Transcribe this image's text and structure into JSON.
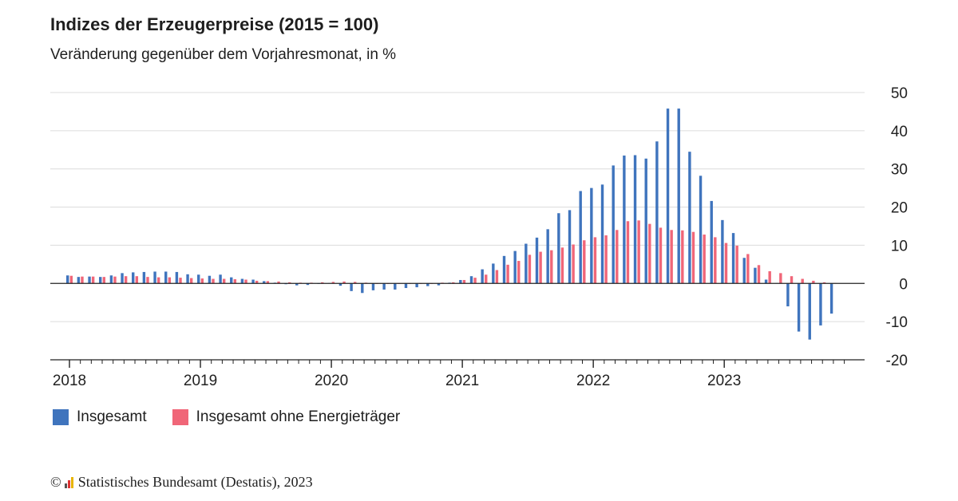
{
  "chart_data": {
    "type": "bar",
    "title": "Indizes der Erzeugerpreise (2015 = 100)",
    "subtitle": "Veränderung gegenüber dem Vorjahresmonat, in %",
    "ylim": [
      -20,
      50
    ],
    "y_ticks": [
      "50",
      "40",
      "30",
      "20",
      "10",
      "0",
      "-10",
      "-20"
    ],
    "y_tick_values": [
      50,
      40,
      30,
      20,
      10,
      0,
      -10,
      -20
    ],
    "x_year_labels": [
      "2018",
      "2019",
      "2020",
      "2021",
      "2022",
      "2023"
    ],
    "grid": true,
    "legend_position": "bottom-left",
    "series": [
      {
        "name": "Insgesamt",
        "color": "#3f74bd",
        "values": [
          2.1,
          1.7,
          1.8,
          1.7,
          2.1,
          2.7,
          2.9,
          3.0,
          3.1,
          3.1,
          3.0,
          2.4,
          2.3,
          2.0,
          2.3,
          1.6,
          1.2,
          1.0,
          0.6,
          0.2,
          -0.2,
          -0.5,
          -0.4,
          0.0,
          0.1,
          -0.6,
          -2.0,
          -2.5,
          -1.8,
          -1.6,
          -1.6,
          -1.2,
          -1.0,
          -0.7,
          -0.5,
          0.2,
          0.9,
          1.9,
          3.7,
          5.2,
          7.2,
          8.5,
          10.4,
          12.0,
          14.2,
          18.4,
          19.2,
          24.2,
          25.0,
          25.9,
          30.9,
          33.5,
          33.6,
          32.7,
          37.2,
          45.8,
          45.8,
          34.5,
          28.2,
          21.6,
          16.6,
          13.2,
          6.7,
          4.1,
          1.0,
          0.1,
          -6.0,
          -12.6,
          -14.7,
          -11.0,
          -7.9
        ]
      },
      {
        "name": "Insgesamt ohne Energieträger",
        "color": "#f06678",
        "values": [
          2.0,
          1.8,
          1.8,
          1.7,
          1.8,
          1.9,
          1.9,
          1.7,
          1.6,
          1.6,
          1.5,
          1.4,
          1.3,
          1.2,
          1.2,
          1.1,
          1.0,
          0.7,
          0.6,
          0.5,
          0.3,
          0.2,
          0.2,
          0.3,
          0.4,
          0.5,
          0.4,
          0.2,
          0.0,
          0.0,
          0.0,
          -0.1,
          0.0,
          0.0,
          0.2,
          0.3,
          0.9,
          1.5,
          2.3,
          3.5,
          4.9,
          5.9,
          7.5,
          8.3,
          8.7,
          9.4,
          10.2,
          11.3,
          12.1,
          12.6,
          14.0,
          16.3,
          16.5,
          15.6,
          14.6,
          14.0,
          13.9,
          13.5,
          12.8,
          12.1,
          10.6,
          9.9,
          7.7,
          4.8,
          3.2,
          2.7,
          1.9,
          1.2,
          0.7,
          0.3,
          0.1
        ]
      }
    ]
  },
  "legend": {
    "items": [
      {
        "label": "Insgesamt",
        "color": "#3f74bd"
      },
      {
        "label": "Insgesamt ohne Energieträger",
        "color": "#f06678"
      }
    ]
  },
  "footer": {
    "copyright": "©",
    "source": "Statistisches Bundesamt (Destatis), 2023"
  }
}
